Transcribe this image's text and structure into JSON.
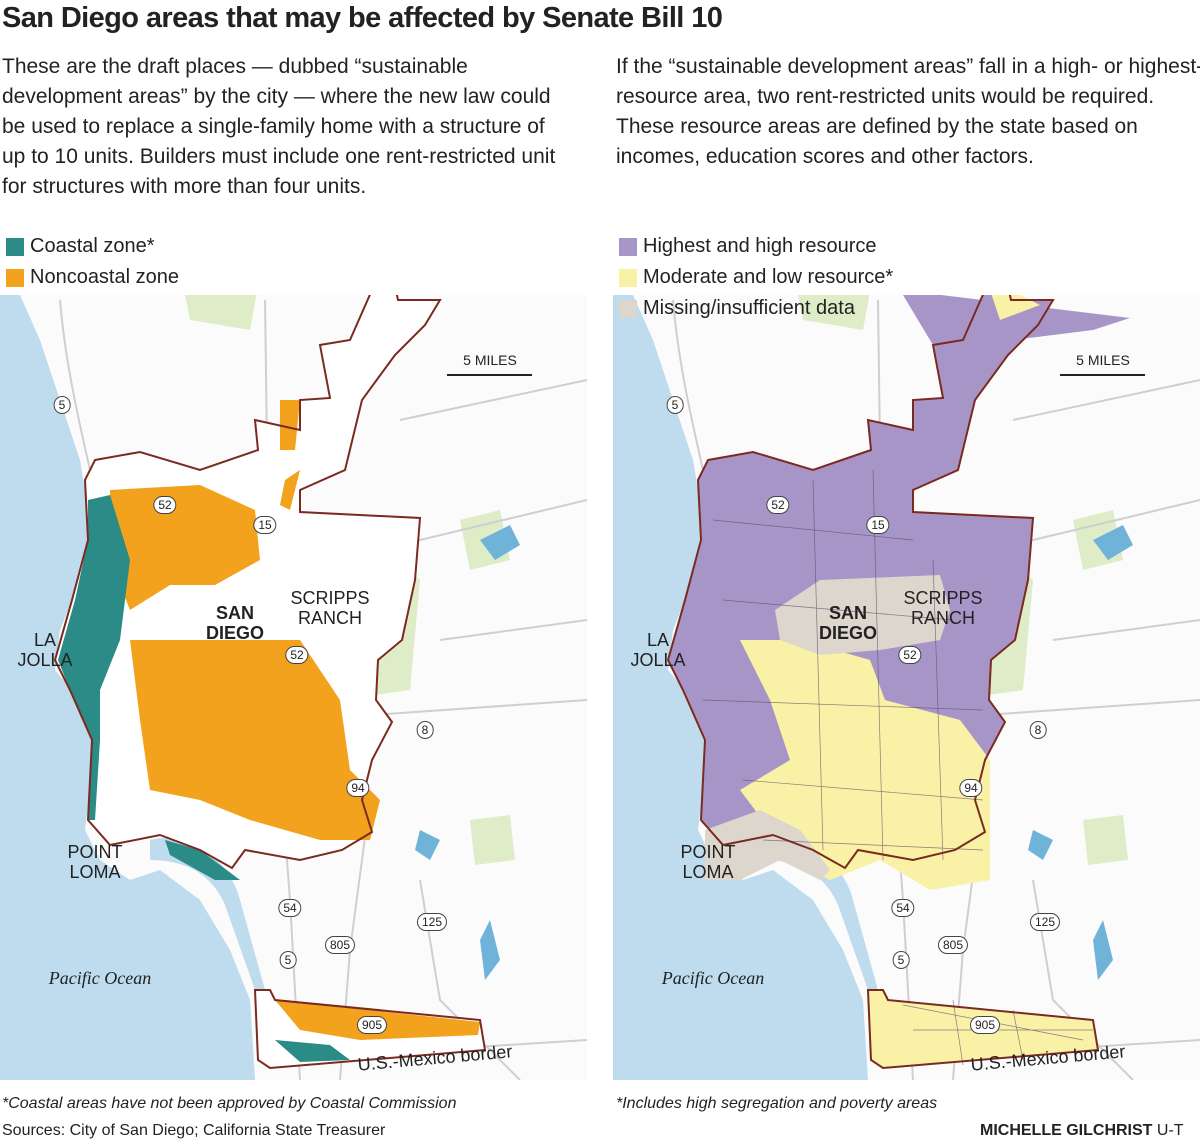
{
  "title": "San Diego areas that may be affected by Senate Bill 10",
  "panels": [
    {
      "intro": "These are the draft places — dubbed “sustainable development areas” by the city — where the new law could be used to replace a single-family home with a structure of up to 10 units. Builders must include one rent-restricted unit for structures with more than four units.",
      "legend": [
        {
          "label": "Coastal zone*",
          "color": "#2b8b86"
        },
        {
          "label": "Noncoastal zone",
          "color": "#f2a21d"
        }
      ],
      "scale": "5 MILES",
      "places": [
        "SAN DIEGO",
        "SCRIPPS RANCH",
        "LA JOLLA",
        "POINT LOMA",
        "Pacific Ocean",
        "U.S.-Mexico border"
      ],
      "shields": [
        "5",
        "52",
        "15",
        "52",
        "8",
        "94",
        "54",
        "125",
        "805",
        "5",
        "905"
      ],
      "footnote": "*Coastal areas have not been approved by Coastal Commission"
    },
    {
      "intro": "If the “sustainable development areas” fall in a high- or highest-resource area, two rent-restricted units would be required. These resource areas are defined by the state based on incomes, education scores and other factors.",
      "legend": [
        {
          "label": "Highest and high resource",
          "color": "#a895c8"
        },
        {
          "label": "Moderate and low resource*",
          "color": "#f9f1a6"
        },
        {
          "label": "Missing/insufficient data",
          "color": "#ddd6cc"
        }
      ],
      "scale": "5 MILES",
      "places": [
        "SAN DIEGO",
        "SCRIPPS RANCH",
        "LA JOLLA",
        "POINT LOMA",
        "Pacific Ocean",
        "U.S.-Mexico border"
      ],
      "shields": [
        "5",
        "52",
        "15",
        "52",
        "8",
        "94",
        "54",
        "125",
        "805",
        "5",
        "905"
      ],
      "footnote": "*Includes high segregation and poverty areas"
    }
  ],
  "sources": "Sources: City of San Diego; California State Treasurer",
  "credit": "MICHELLE GILCHRIST",
  "credit_org": "U-T"
}
